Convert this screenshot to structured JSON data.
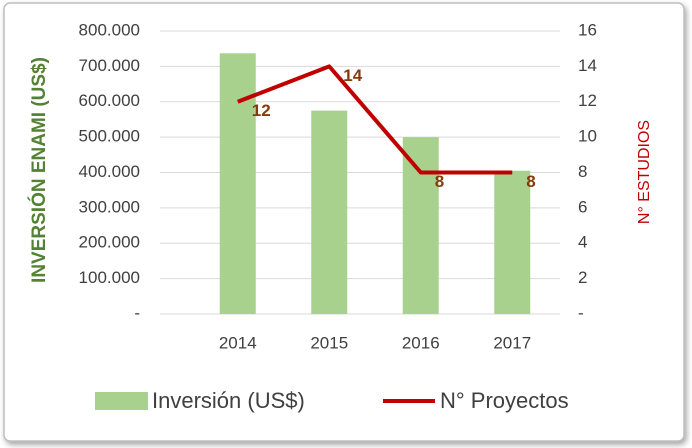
{
  "chart_data": {
    "type": "bar",
    "categories": [
      "2014",
      "2015",
      "2016",
      "2017"
    ],
    "series": [
      {
        "name": "Inversión (US$)",
        "color": "#a9d18e",
        "values": [
          737000,
          575000,
          500000,
          405000
        ]
      },
      {
        "name": "N° Proyectos",
        "color": "#c00000",
        "values": [
          12,
          14,
          8,
          8
        ],
        "axis": "y2"
      }
    ],
    "ylabel": "INVERSIÓN ENAMI (US$)",
    "y2label": "N° ESTUDIOS",
    "ylim": [
      0,
      800000
    ],
    "yticks": [
      {
        "value": 0,
        "label": "-"
      },
      {
        "value": 100000,
        "label": "100.000"
      },
      {
        "value": 200000,
        "label": "200.000"
      },
      {
        "value": 300000,
        "label": "300.000"
      },
      {
        "value": 400000,
        "label": "400.000"
      },
      {
        "value": 500000,
        "label": "500.000"
      },
      {
        "value": 600000,
        "label": "600.000"
      },
      {
        "value": 700000,
        "label": "700.000"
      },
      {
        "value": 800000,
        "label": "800.000"
      }
    ],
    "y2lim": [
      0,
      16
    ],
    "y2ticks": [
      {
        "value": 0,
        "label": "-"
      },
      2,
      4,
      6,
      8,
      10,
      12,
      14,
      16
    ],
    "grid": true,
    "legend": "bottom"
  }
}
